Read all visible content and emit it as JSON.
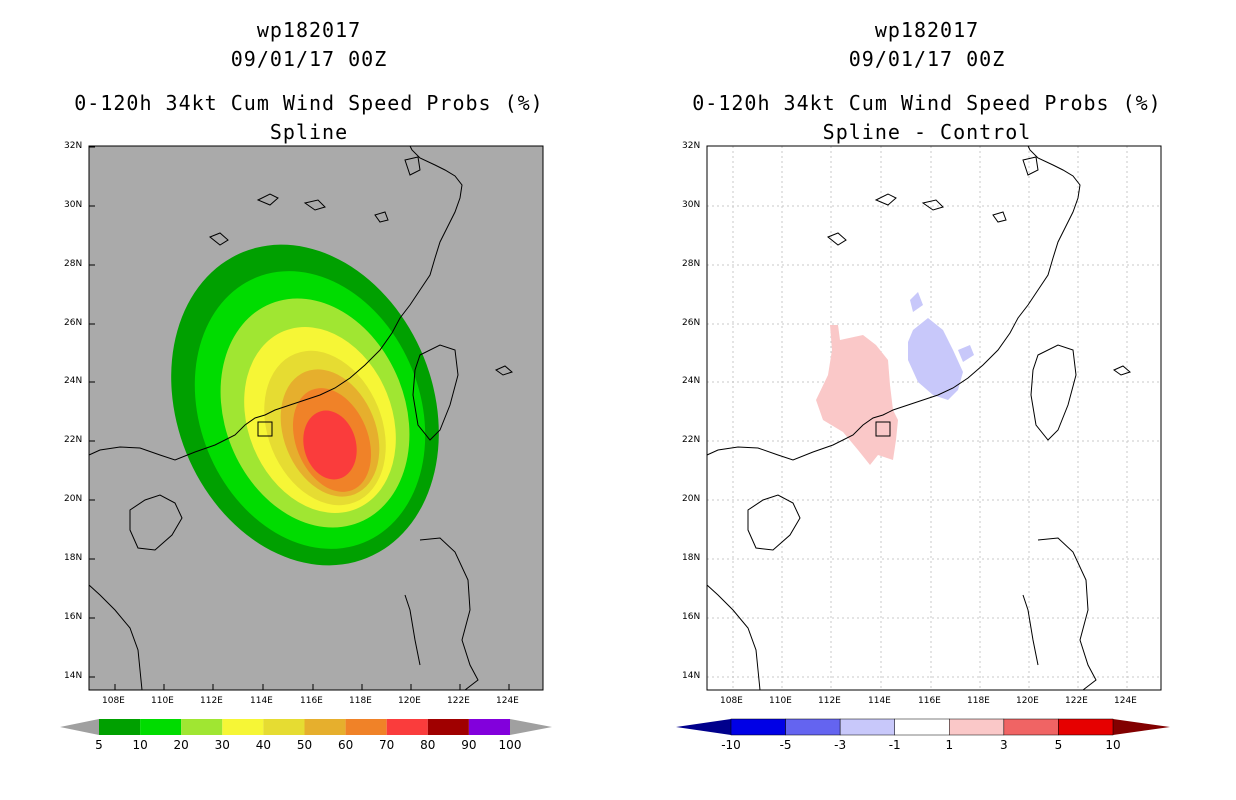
{
  "left": {
    "line1": "wp182017",
    "line2": "09/01/17 00Z",
    "line3": "0-120h 34kt Cum Wind Speed Probs (%)",
    "line4": "Spline",
    "lat_labels": [
      "32N",
      "30N",
      "28N",
      "26N",
      "24N",
      "22N",
      "20N",
      "18N",
      "16N",
      "14N"
    ],
    "lon_labels": [
      "108E",
      "110E",
      "112E",
      "114E",
      "116E",
      "118E",
      "120E",
      "122E",
      "124E"
    ],
    "colorbar": {
      "colors": [
        "#00a000",
        "#00dc00",
        "#a0e632",
        "#f6f636",
        "#e6dc32",
        "#e6af2d",
        "#f08228",
        "#fa3c3c",
        "#a00000",
        "#8200dc"
      ],
      "labels": [
        "5",
        "10",
        "20",
        "30",
        "40",
        "50",
        "60",
        "70",
        "80",
        "90",
        "100"
      ],
      "arrow_color": "#a0a0a0"
    },
    "background": "#aaaaaa"
  },
  "right": {
    "line1": "wp182017",
    "line2": "09/01/17 00Z",
    "line3": "0-120h 34kt Cum Wind Speed Probs (%)",
    "line4": "Spline - Control",
    "lat_labels": [
      "32N",
      "30N",
      "28N",
      "26N",
      "24N",
      "22N",
      "20N",
      "18N",
      "16N",
      "14N"
    ],
    "lon_labels": [
      "108E",
      "110E",
      "112E",
      "114E",
      "116E",
      "118E",
      "120E",
      "122E",
      "124E"
    ],
    "colorbar": {
      "colors": [
        "#0000e6",
        "#6464f0",
        "#c8c8fa",
        "#ffffff",
        "#fac8c8",
        "#f06464",
        "#e60000"
      ],
      "labels": [
        "-10",
        "-5",
        "-3",
        "-1",
        "1",
        "3",
        "5",
        "10"
      ],
      "left_arrow": "#00008c",
      "right_arrow": "#820000"
    },
    "background": "#ffffff"
  }
}
